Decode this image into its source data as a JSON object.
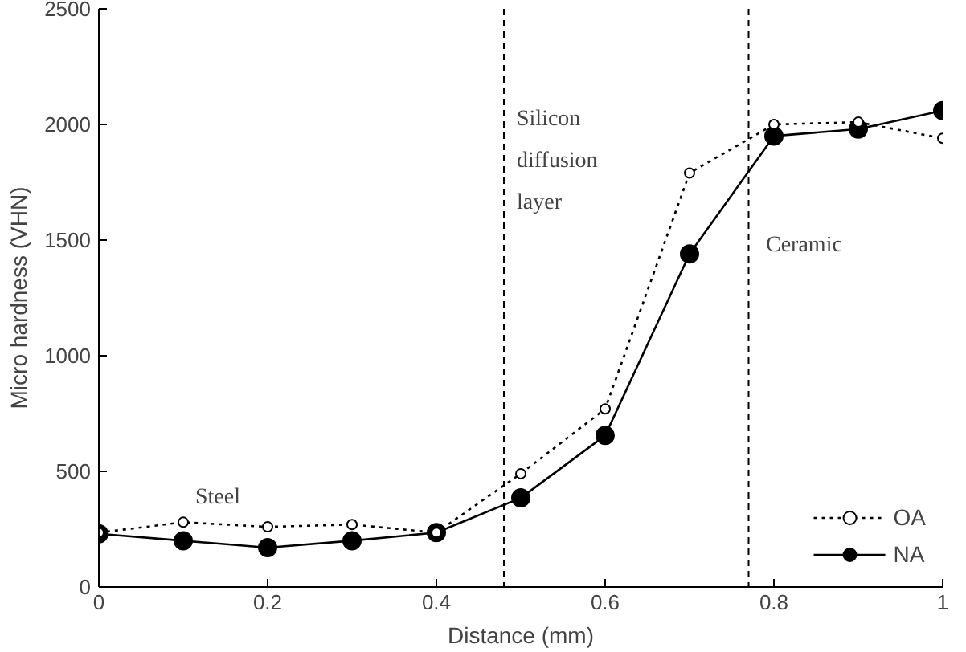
{
  "chart_data": {
    "type": "line",
    "xlabel": "Distance (mm)",
    "ylabel": "Micro hardness (VHN)",
    "x": [
      0,
      0.1,
      0.2,
      0.3,
      0.4,
      0.5,
      0.6,
      0.7,
      0.8,
      0.9,
      1
    ],
    "series": [
      {
        "name": "OA",
        "color": "#000000",
        "marker": "circle",
        "line_style": "dotted",
        "values": [
          235,
          280,
          260,
          270,
          235,
          490,
          770,
          1790,
          2000,
          2010,
          1940
        ]
      },
      {
        "name": "NA",
        "color": "#000000",
        "marker": "circle",
        "line_style": "solid",
        "values": [
          230,
          200,
          170,
          200,
          235,
          385,
          655,
          1440,
          1950,
          1980,
          2060
        ]
      }
    ],
    "xlim": [
      0,
      1
    ],
    "ylim": [
      0,
      2500
    ],
    "xticks": [
      0,
      0.2,
      0.4,
      0.6,
      0.8,
      1
    ],
    "yticks": [
      0,
      500,
      1000,
      1500,
      2000,
      2500
    ],
    "ref_lines": [
      {
        "axis": "x",
        "value": 0.48,
        "line_style": "dashed"
      },
      {
        "axis": "x",
        "value": 0.77,
        "line_style": "dashed"
      }
    ],
    "annotations": [
      "Steel",
      "Silicon\ndiffusion\nlayer",
      "Ceramic"
    ],
    "grid": false,
    "legend": "bottom right"
  }
}
